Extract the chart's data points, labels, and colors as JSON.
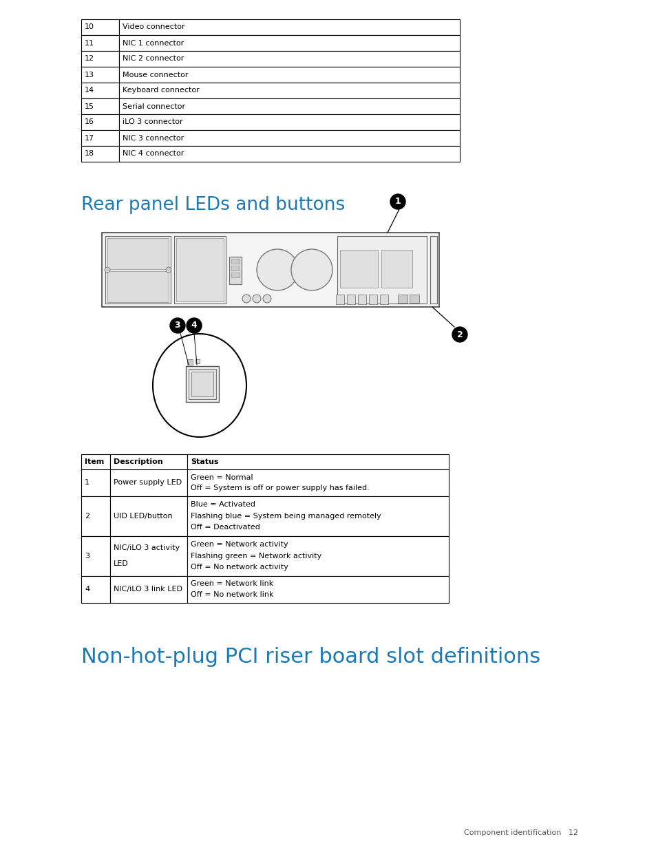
{
  "bg_color": "#ffffff",
  "top_table": {
    "rows": [
      [
        "10",
        "Video connector"
      ],
      [
        "11",
        "NIC 1 connector"
      ],
      [
        "12",
        "NIC 2 connector"
      ],
      [
        "13",
        "Mouse connector"
      ],
      [
        "14",
        "Keyboard connector"
      ],
      [
        "15",
        "Serial connector"
      ],
      [
        "16",
        "iLO 3 connector"
      ],
      [
        "17",
        "NIC 3 connector"
      ],
      [
        "18",
        "NIC 4 connector"
      ]
    ]
  },
  "section1_title": "Rear panel LEDs and buttons",
  "section2_title": "Non-hot-plug PCI riser board slot definitions",
  "bottom_table": {
    "headers": [
      "Item",
      "Description",
      "Status"
    ],
    "rows": [
      [
        "1",
        "Power supply LED",
        "Green = Normal\nOff = System is off or power supply has failed."
      ],
      [
        "2",
        "UID LED/button",
        "Blue = Activated\nFlashing blue = System being managed remotely\nOff = Deactivated"
      ],
      [
        "3",
        "NIC/iLO 3 activity\nLED",
        "Green = Network activity\nFlashing green = Network activity\nOff = No network activity"
      ],
      [
        "4",
        "NIC/iLO 3 link LED",
        "Green = Network link\nOff = No network link"
      ]
    ]
  },
  "footer_text": "Component identification   12",
  "blue_color": "#1a7ab5",
  "text_color": "#000000",
  "table_border_color": "#000000",
  "body_font_size": 8.0,
  "title_font_size": 19
}
